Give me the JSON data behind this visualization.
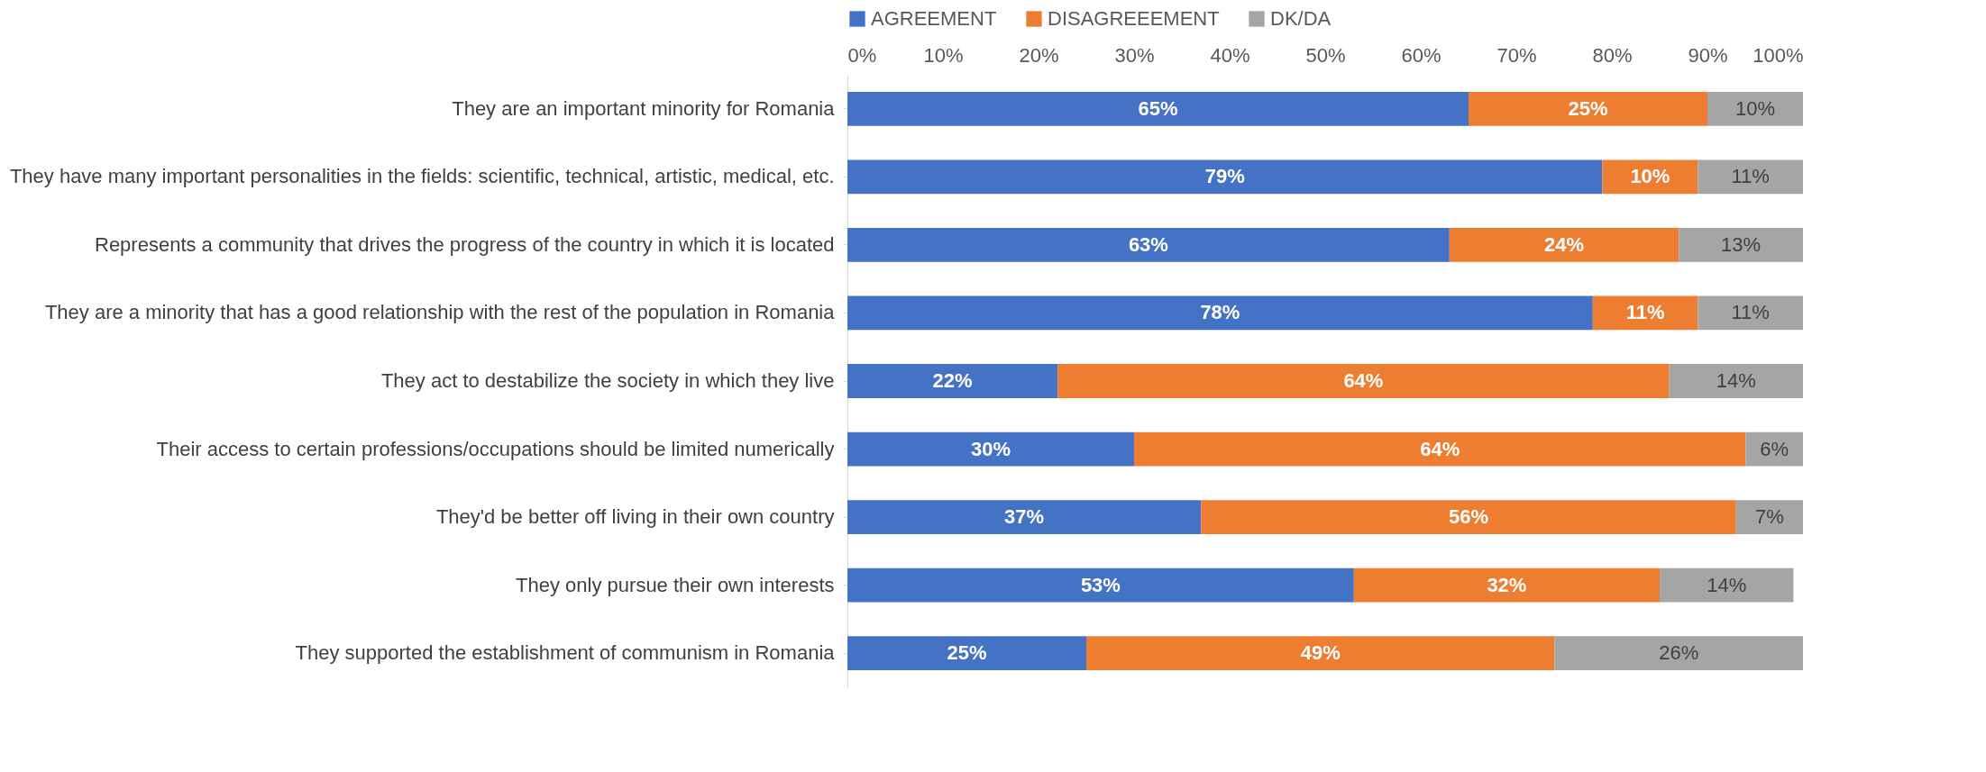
{
  "chart_data": {
    "type": "bar",
    "orientation": "horizontal",
    "stacked": true,
    "legend": "top",
    "categories": [
      "They are an important minority for Romania",
      "They have many important personalities in the fields: scientific, technical, artistic, medical, etc.",
      "Represents a community that drives the progress of the country in which it is located",
      "They are a minority that has a good relationship with the rest of the population in Romania",
      "They act to destabilize the society in which they live",
      "Their access to certain professions/occupations should be limited numerically",
      "They'd be better off living in their own country",
      "They only pursue their own interests",
      "They supported the establishment of communism in Romania"
    ],
    "series": [
      {
        "name": "AGREEMENT",
        "color": "#4472c4",
        "values": [
          65,
          79,
          63,
          78,
          22,
          30,
          37,
          53,
          25
        ],
        "value_labels": [
          "65%",
          "79%",
          "63%",
          "78%",
          "22%",
          "30%",
          "37%",
          "53%",
          "25%"
        ]
      },
      {
        "name": "DISAGREEEMENT",
        "color": "#ed7d31",
        "values": [
          25,
          10,
          24,
          11,
          64,
          64,
          56,
          32,
          49
        ],
        "value_labels": [
          "25%",
          "10%",
          "24%",
          "11%",
          "64%",
          "64%",
          "56%",
          "32%",
          "49%"
        ]
      },
      {
        "name": "DK/DA",
        "color": "#a5a5a5",
        "values": [
          10,
          11,
          13,
          11,
          14,
          6,
          7,
          14,
          26
        ],
        "value_labels": [
          "10%",
          "11%",
          "13%",
          "11%",
          "14%",
          "6%",
          "7%",
          "14%",
          "26%"
        ]
      }
    ],
    "xlim": [
      0,
      100
    ],
    "xticks": [
      {
        "value": 0,
        "label": "0%"
      },
      {
        "value": 10,
        "label": "10%"
      },
      {
        "value": 20,
        "label": "20%"
      },
      {
        "value": 30,
        "label": "30%"
      },
      {
        "value": 40,
        "label": "40%"
      },
      {
        "value": 50,
        "label": "50%"
      },
      {
        "value": 60,
        "label": "60%"
      },
      {
        "value": 70,
        "label": "70%"
      },
      {
        "value": 80,
        "label": "80%"
      },
      {
        "value": 90,
        "label": "90%"
      },
      {
        "value": 100,
        "label": "100%"
      }
    ]
  }
}
